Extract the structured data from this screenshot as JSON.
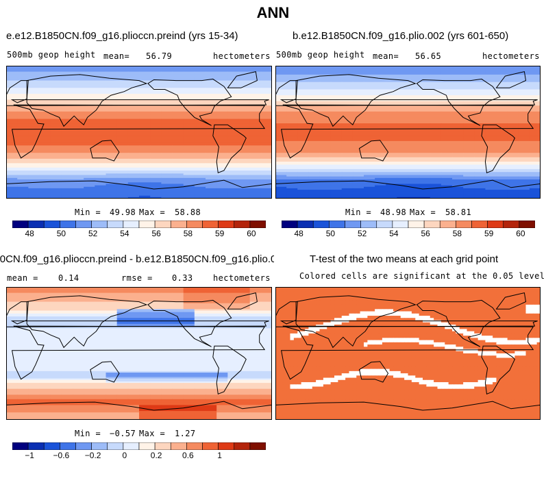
{
  "title": "ANN",
  "panels": [
    {
      "title": "e.e12.B1850CN.f09_g16.plioccn.preind (yrs 15-34)",
      "left_label": "500mb geop height",
      "mean_label": "mean=",
      "mean_value": "56.79",
      "units": "hectometers",
      "min_label": "Min =",
      "min_value": "49.98",
      "max_label": "Max =",
      "max_value": "58.88"
    },
    {
      "title": "b.e12.B1850CN.f09_g16.plio.002 (yrs 601-650)",
      "left_label": "500mb geop height",
      "mean_label": "mean=",
      "mean_value": "56.65",
      "units": "hectometers",
      "min_label": "Min =",
      "min_value": "48.98",
      "max_label": "Max =",
      "max_value": "58.81"
    },
    {
      "title": "e.e12.B1850CN.f09_g16.plioccn.preind - b.e12.B1850CN.f09_g16.plio.002",
      "mean_label": "mean =",
      "mean_value": "0.14",
      "rmse_label": "rmse =",
      "rmse_value": "0.33",
      "units": "hectometers",
      "min_label": "Min =",
      "min_value": "−0.57",
      "max_label": "Max =",
      "max_value": "1.27"
    },
    {
      "title": "T-test of the two means at each grid point",
      "subtitle": "Colored cells are significant at the 0.05 level"
    }
  ],
  "chart_data": [
    {
      "type": "heatmap",
      "title": "e.e12.B1850CN.f09_g16.plioccn.preind (yrs 15-34)",
      "variable": "500mb geop height",
      "units": "hectometers",
      "mean": 56.79,
      "min": 49.98,
      "max": 58.88,
      "colorbar_ticks": [
        "48",
        "50",
        "52",
        "54",
        "56",
        "58",
        "59",
        "60"
      ],
      "lat_profile": [
        {
          "lat": 90,
          "value": 51.5
        },
        {
          "lat": 75,
          "value": 52.5
        },
        {
          "lat": 60,
          "value": 54.0
        },
        {
          "lat": 45,
          "value": 55.8
        },
        {
          "lat": 35,
          "value": 57.3
        },
        {
          "lat": 25,
          "value": 58.4
        },
        {
          "lat": 0,
          "value": 58.8
        },
        {
          "lat": -25,
          "value": 58.4
        },
        {
          "lat": -35,
          "value": 57.3
        },
        {
          "lat": -45,
          "value": 55.5
        },
        {
          "lat": -55,
          "value": 53.5
        },
        {
          "lat": -65,
          "value": 51.5
        },
        {
          "lat": -80,
          "value": 50.5
        },
        {
          "lat": -90,
          "value": 50.2
        }
      ]
    },
    {
      "type": "heatmap",
      "title": "b.e12.B1850CN.f09_g16.plio.002 (yrs 601-650)",
      "variable": "500mb geop height",
      "units": "hectometers",
      "mean": 56.65,
      "min": 48.98,
      "max": 58.81,
      "colorbar_ticks": [
        "48",
        "50",
        "52",
        "54",
        "56",
        "58",
        "59",
        "60"
      ],
      "lat_profile": [
        {
          "lat": 90,
          "value": 51.2
        },
        {
          "lat": 75,
          "value": 52.2
        },
        {
          "lat": 60,
          "value": 53.8
        },
        {
          "lat": 45,
          "value": 55.6
        },
        {
          "lat": 35,
          "value": 57.2
        },
        {
          "lat": 25,
          "value": 58.3
        },
        {
          "lat": 0,
          "value": 58.7
        },
        {
          "lat": -25,
          "value": 58.3
        },
        {
          "lat": -35,
          "value": 57.0
        },
        {
          "lat": -45,
          "value": 55.0
        },
        {
          "lat": -55,
          "value": 52.8
        },
        {
          "lat": -65,
          "value": 50.6
        },
        {
          "lat": -80,
          "value": 49.6
        },
        {
          "lat": -90,
          "value": 49.2
        }
      ]
    },
    {
      "type": "heatmap",
      "title": "e.e12.B1850CN.f09_g16.plioccn.preind - b.e12.B1850CN.f09_g16.plio.002",
      "units": "hectometers",
      "mean": 0.14,
      "rmse": 0.33,
      "min": -0.57,
      "max": 1.27,
      "colorbar_ticks": [
        "−1",
        "−0.6",
        "−0.2",
        "0",
        "0.2",
        "0.6",
        "1"
      ],
      "lat_profile": [
        {
          "lat": 90,
          "value": 0.7
        },
        {
          "lat": 75,
          "value": 0.5
        },
        {
          "lat": 60,
          "value": 0.25
        },
        {
          "lat": 45,
          "value": -0.1
        },
        {
          "lat": 30,
          "value": 0.05
        },
        {
          "lat": 0,
          "value": 0.1
        },
        {
          "lat": -20,
          "value": 0.05
        },
        {
          "lat": -30,
          "value": -0.1
        },
        {
          "lat": -40,
          "value": 0.2
        },
        {
          "lat": -55,
          "value": 0.6
        },
        {
          "lat": -65,
          "value": 0.9
        },
        {
          "lat": -80,
          "value": 0.6
        },
        {
          "lat": -90,
          "value": 0.5
        }
      ]
    },
    {
      "type": "heatmap",
      "title": "T-test of the two means at each grid point",
      "subtitle": "Colored cells are significant at the 0.05 level",
      "significance_level": 0.05,
      "significant_color": "#f2703a"
    }
  ],
  "colors": {
    "scale": [
      "#00007f",
      "#0a2fb2",
      "#1a53d9",
      "#3f74e8",
      "#6f98f2",
      "#9dbcf8",
      "#c7dafc",
      "#e6efff",
      "#fff3e8",
      "#fdd6bf",
      "#fbb08e",
      "#f58a5f",
      "#ef6335",
      "#de3a16",
      "#b3240b",
      "#7f0f00"
    ],
    "land_outline": "#000000",
    "insignificant": "#ffffff"
  }
}
